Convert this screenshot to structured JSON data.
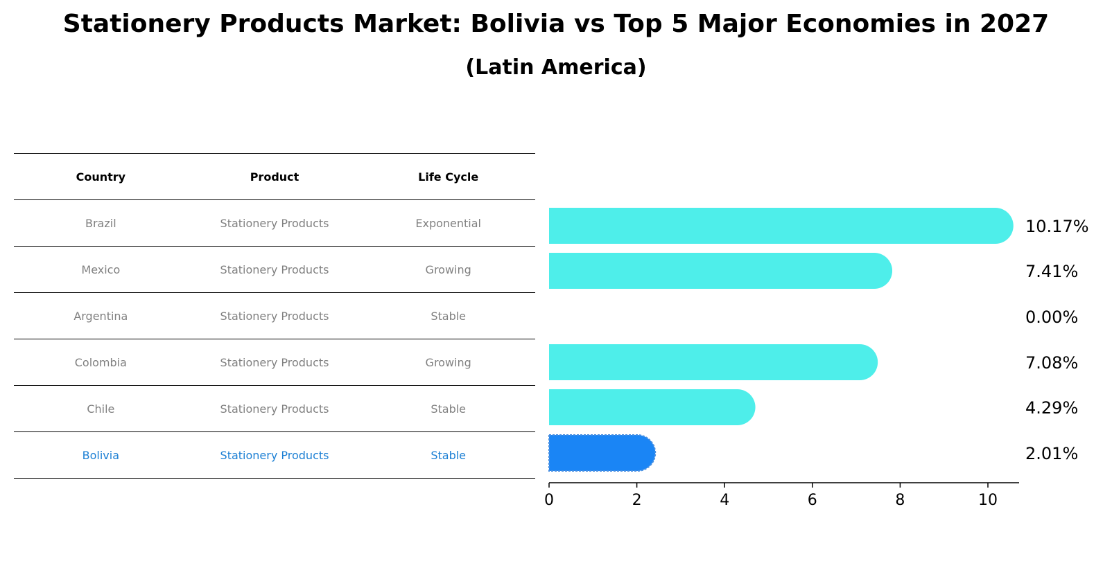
{
  "title": "Stationery Products Market: Bolivia vs Top 5 Major Economies in 2027",
  "subtitle": "(Latin America)",
  "table": {
    "headers": [
      "Country",
      "Product",
      "Life Cycle"
    ],
    "rows": [
      [
        "Brazil",
        "Stationery Products",
        "Exponential"
      ],
      [
        "Mexico",
        "Stationery Products",
        "Growing"
      ],
      [
        "Argentina",
        "Stationery Products",
        "Stable"
      ],
      [
        "Colombia",
        "Stationery Products",
        "Growing"
      ],
      [
        "Chile",
        "Stationery Products",
        "Stable"
      ],
      [
        "Bolivia",
        "Stationery Products",
        "Stable"
      ]
    ]
  },
  "colors": {
    "bar": "#4eeeea",
    "highlight": "#1a85f5",
    "highlight_text": "#1b7fd4"
  },
  "chart_data": {
    "type": "bar",
    "orientation": "horizontal",
    "title": "Stationery Products Market: Bolivia vs Top 5 Major Economies in 2027",
    "subtitle": "(Latin America)",
    "categories": [
      "Brazil",
      "Mexico",
      "Argentina",
      "Colombia",
      "Chile",
      "Bolivia"
    ],
    "values": [
      10.17,
      7.41,
      0.0,
      7.08,
      4.29,
      2.01
    ],
    "labels": [
      "10.17%",
      "7.41%",
      "0.00%",
      "7.08%",
      "4.29%",
      "2.01%"
    ],
    "highlight": "Bolivia",
    "xticks": [
      0,
      2,
      4,
      6,
      8,
      10
    ],
    "xlim": [
      0,
      10.7
    ],
    "xlabel": "",
    "ylabel": ""
  }
}
